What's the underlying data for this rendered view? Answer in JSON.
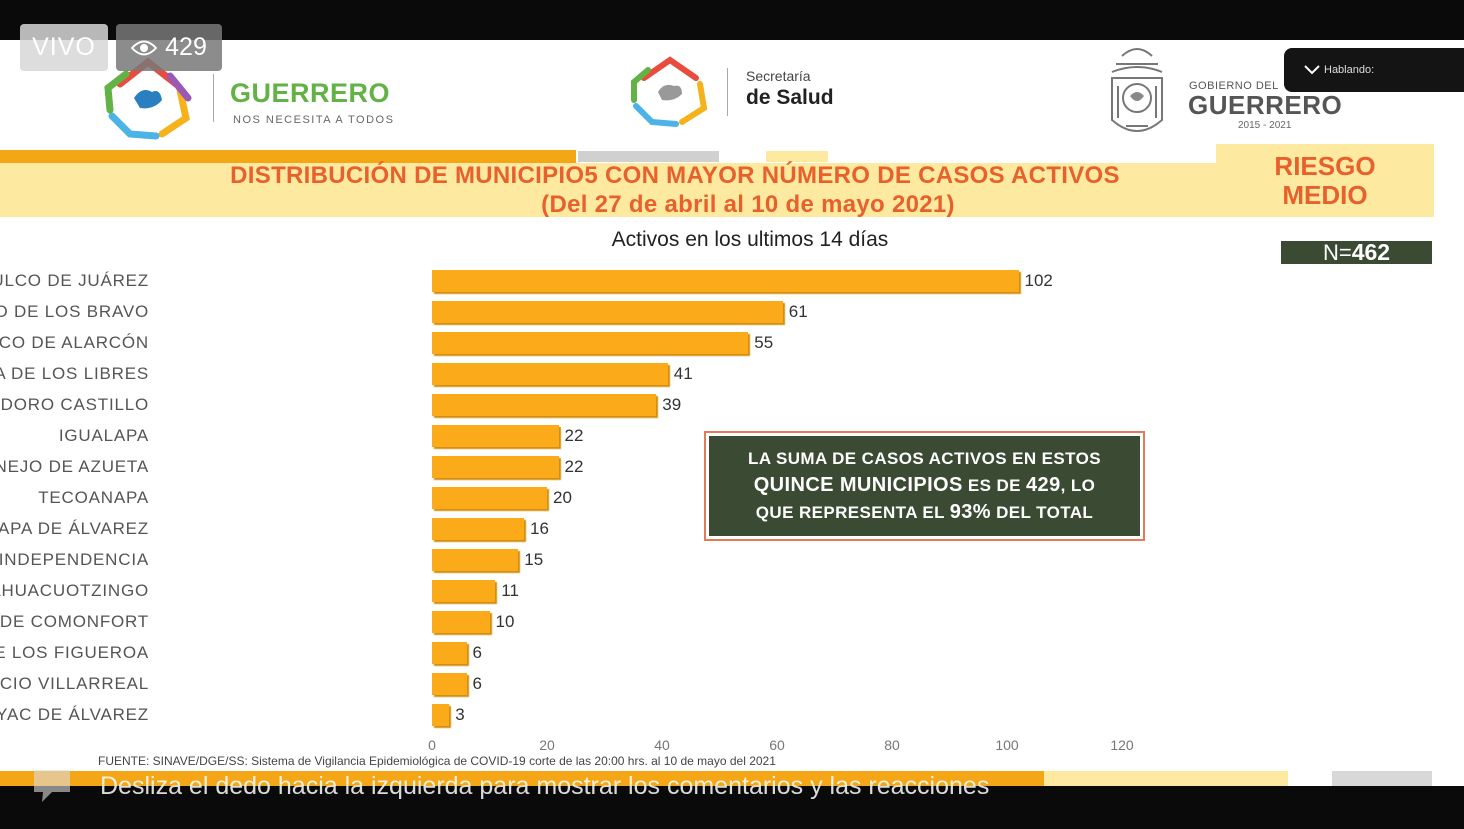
{
  "stream": {
    "live_label": "VIVO",
    "viewer_count": "429",
    "speaking_label": "Hablando:",
    "swipe_hint": "Desliza el dedo hacia la izquierda para mostrar los comentarios y las reacciones"
  },
  "logos": {
    "guerrero_name": "GUERRERO",
    "guerrero_tagline": "NOS NECESITA A TODOS",
    "salud_line1": "Secretaría",
    "salud_line2": "de Salud",
    "gobierno_line1": "GOBIERNO DEL",
    "gobierno_line2": "GUERRERO",
    "gobierno_years": "2015 - 2021"
  },
  "slide": {
    "title_line1": "DISTRIBUCIÓN DE MUNICIPIO5 CON MAYOR NÚMERO DE  CASOS ACTIVOS",
    "title_line2": "(Del 27 de abril al 10 de mayo 2021)",
    "risk_line1": "RIESGO",
    "risk_line2": "MEDIO",
    "n_prefix": "N=",
    "n_value": "462",
    "callout_line1": "LA SUMA DE CASOS ACTIVOS EN ESTOS",
    "callout_line2a": "QUINCE MUNICIPIOS",
    "callout_line2b": " ES DE ",
    "callout_line2c": "429",
    "callout_line2d": ", LO",
    "callout_line3a": "QUE REPRESENTA EL ",
    "callout_line3b": "93%",
    "callout_line3c": " DEL TOTAL",
    "source": "FUENTE: SINAVE/DGE/SS: Sistema de Vigilancia Epidemiológica de COVID-19 corte de las 20:00 hrs. al 10 de mayo del 2021"
  },
  "chart_data": {
    "type": "bar",
    "orientation": "horizontal",
    "title": "Activos en los ultimos 14 días",
    "categories": [
      "ACAPULCO DE JUÁREZ",
      "CHILPANCINGO DE LOS BRAVO",
      "TAXCO DE ALARCÓN",
      "AYUTLA DE LOS LIBRES",
      "GENERAL HELIODORO CASTILLO",
      "IGUALAPA",
      "ZIHUATANEJO DE AZUETA",
      "TECOANAPA",
      "CHILAPA DE ÁLVAREZ",
      "IGUALA DE LA INDEPENDENCIA",
      "AHUACUOTZINGO",
      "TLAPA DE COMONFORT",
      "HUITZUCO DE LOS FIGUEROA",
      "FLORENCIO VILLARREAL",
      "ATOYAC DE ÁLVAREZ"
    ],
    "values": [
      102,
      61,
      55,
      41,
      39,
      22,
      22,
      20,
      16,
      15,
      11,
      10,
      6,
      6,
      3
    ],
    "xlim": [
      0,
      120
    ],
    "xticks": [
      "0",
      "20",
      "40",
      "60",
      "80",
      "100",
      "120"
    ],
    "bar_color": "#fbab1a",
    "grid": false
  },
  "colors": {
    "accent_orange": "#f4a617",
    "title_text": "#e8602c",
    "band_yellow": "#fdeaa0",
    "dark_green": "#3a4a33",
    "brand_green": "#63b245"
  }
}
